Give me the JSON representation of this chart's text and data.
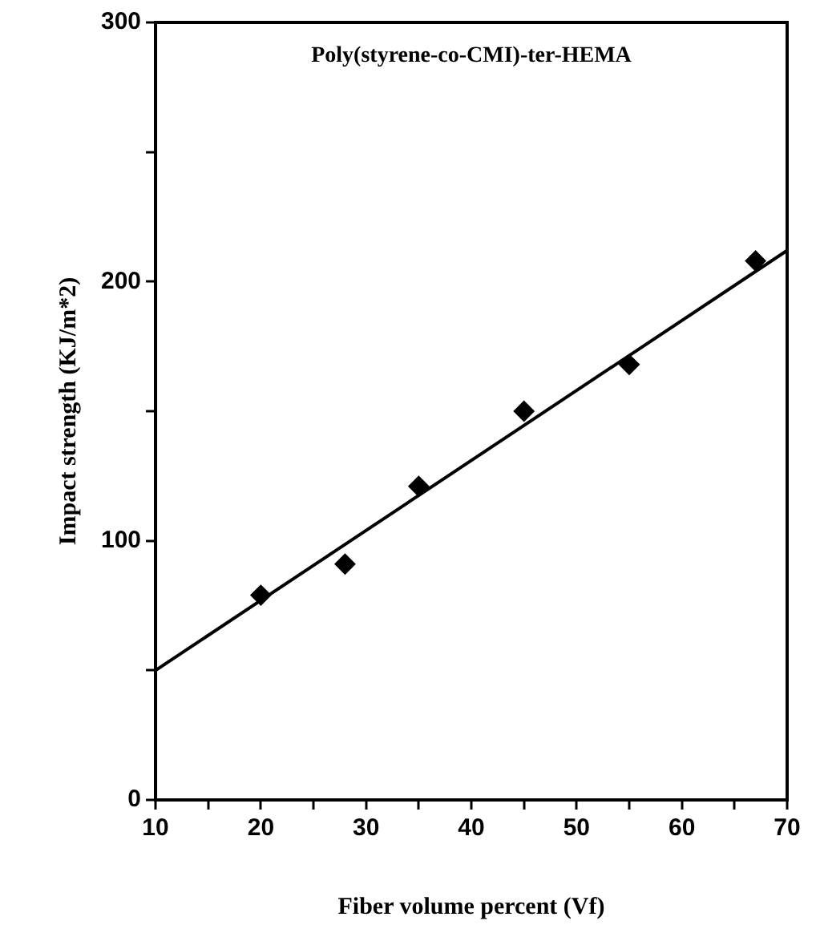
{
  "chart_data": {
    "type": "scatter",
    "xlabel": "Fiber volume percent (Vf)",
    "ylabel": "Impact strength (KJ/m*2)",
    "annotations": [
      "Poly(styrene-co-CMI)-ter-HEMA"
    ],
    "legend": false,
    "xlim": [
      10,
      70
    ],
    "xticks": [
      10,
      {
        "value": 15,
        "label": null
      },
      20,
      {
        "value": 25,
        "label": null
      },
      30,
      {
        "value": 35,
        "label": null
      },
      40,
      {
        "value": 45,
        "label": null
      },
      50,
      {
        "value": 55,
        "label": null
      },
      60,
      {
        "value": 65,
        "label": null
      },
      70
    ],
    "ylim": [
      0,
      300
    ],
    "yticks": [
      0,
      {
        "value": 50,
        "label": null
      },
      100,
      {
        "value": 150,
        "label": null
      },
      200,
      {
        "value": 250,
        "label": null
      },
      300
    ],
    "series": [
      {
        "color": "#000000",
        "marker": "diamond",
        "x": [
          20,
          28,
          35,
          45,
          55,
          67
        ],
        "values": [
          79,
          91,
          121,
          150,
          168,
          208
        ]
      },
      {
        "type": "line",
        "color": "#000000",
        "marker": "none",
        "line_style": "solid",
        "x": [
          10,
          70
        ],
        "values": [
          50,
          212
        ]
      }
    ]
  }
}
